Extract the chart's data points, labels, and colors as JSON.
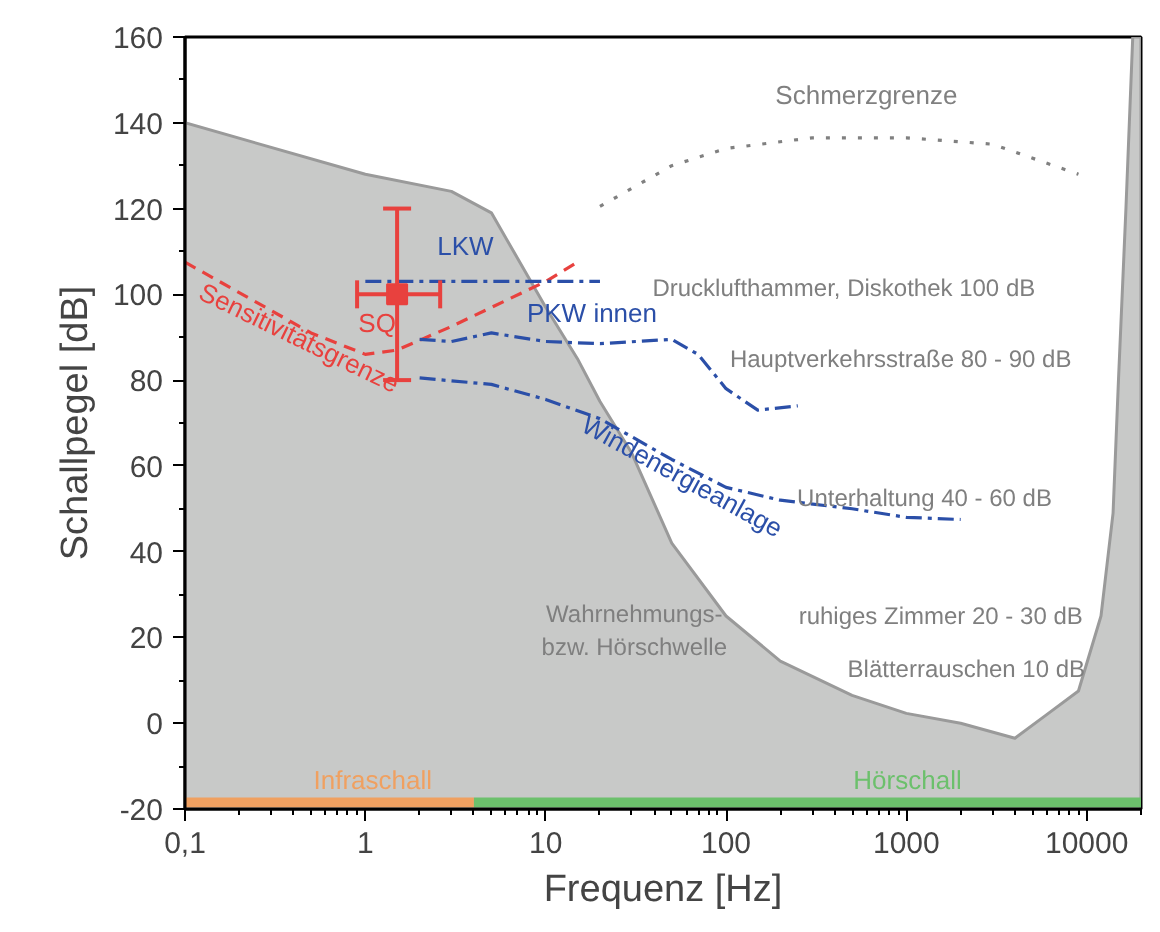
{
  "chart_data": {
    "type": "line",
    "xlabel": "Frequenz [Hz]",
    "ylabel": "Schallpegel [dB]",
    "log": "x",
    "xlim": [
      0.1,
      20000
    ],
    "ylim": [
      -20,
      160
    ],
    "xticks": [
      {
        "value": 0.1,
        "label": "0,1"
      },
      1,
      10,
      100,
      1000,
      10000
    ],
    "yticks": [
      -20,
      0,
      20,
      40,
      60,
      80,
      100,
      120,
      140,
      160
    ],
    "grid": false,
    "series": [
      {
        "type": "area",
        "color": "#c8c9c8",
        "x": [
          0.1,
          1,
          3,
          5,
          10,
          15,
          20,
          30,
          50,
          100,
          200,
          500,
          1000,
          2000,
          4000,
          6000,
          9000,
          12000,
          14000,
          15000,
          16500,
          18000,
          20000
        ],
        "values": [
          140,
          128,
          124,
          119,
          97,
          85,
          75,
          63,
          42,
          25,
          14.5,
          6.5,
          2.3,
          0,
          -3.5,
          2,
          7.5,
          25,
          49,
          80,
          120,
          160,
          160
        ]
      },
      {
        "name": "Schmerzgrenze",
        "color": "#808080",
        "line_style": "dotted",
        "x": [
          20,
          50,
          100,
          300,
          1000,
          3000,
          9000
        ],
        "values": [
          120.5,
          130,
          134,
          136.5,
          136.5,
          135,
          128
        ]
      },
      {
        "name": "Sensitivitätsgrenze",
        "color": "#e8413e",
        "line_style": "dashed",
        "x": [
          0.1,
          0.5,
          1,
          1.5,
          3,
          10,
          15
        ],
        "values": [
          107.5,
          91,
          86,
          87,
          92.5,
          103,
          107.5
        ]
      },
      {
        "name": "LKW",
        "color": "#2b4fa8",
        "line_style": "dashdot",
        "x": [
          1,
          20
        ],
        "values": [
          103,
          103
        ]
      },
      {
        "name": "PKW innen",
        "color": "#2b4fa8",
        "line_style": "dashdot",
        "x": [
          2,
          3,
          5,
          10,
          20,
          50,
          70,
          100,
          150,
          250
        ],
        "values": [
          89.5,
          89,
          91,
          89,
          88.5,
          89.5,
          86,
          78,
          73,
          74
        ]
      },
      {
        "name": "Windenergieanlage",
        "color": "#2b4fa8",
        "line_style": "dashdot",
        "x": [
          2,
          5,
          10,
          20,
          50,
          100,
          200,
          500,
          1000,
          2000
        ],
        "values": [
          80.5,
          79,
          75.5,
          71,
          61.5,
          55,
          52,
          50,
          48,
          47.5
        ]
      },
      {
        "type": "scatter",
        "name": "SQ",
        "color": "#e8413e",
        "marker": "square",
        "x": [
          1.5
        ],
        "values": [
          100
        ],
        "errors": [
          [
            80,
            120
          ]
        ],
        "xerrors": [
          [
            0.9,
            2.6
          ]
        ]
      },
      {
        "name": "Infraschall",
        "color": "#f0a060",
        "x": [
          0.1,
          4
        ],
        "values": [
          -18.5,
          -18.5
        ]
      },
      {
        "name": "Hörschall",
        "color": "#6cc06c",
        "x": [
          4,
          20000
        ],
        "values": [
          -18.5,
          -18.5
        ]
      }
    ],
    "annotations": [
      "Drucklufthammer, Diskothek 100 dB",
      "Hauptverkehrsstraße 80 - 90 dB",
      "Unterhaltung 40 - 60 dB",
      "ruhiges Zimmer 20 - 30 dB",
      "Blätterrauschen 10 dB",
      "Wahrnehmungs-\nbzw. Hörschwelle"
    ]
  }
}
